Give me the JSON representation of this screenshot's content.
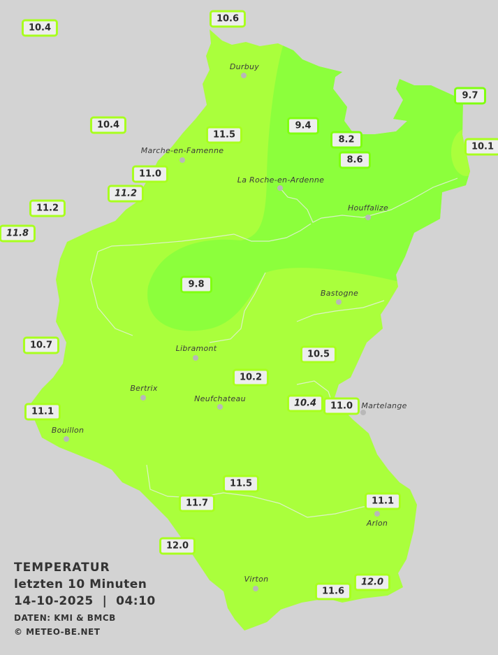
{
  "legend": {
    "title": "TEMPERATUR",
    "period": "letzten 10 Minuten",
    "datetime": "14-10-2025  |  04:10",
    "source": "DATEN: KMI & BMCB",
    "copyright": "© METEO-BE.NET"
  },
  "colors": {
    "background": "#d3d3d3",
    "zone_10_to_12": "#aaff3c",
    "zone_8_to_10": "#8cff3c",
    "badge_border_warm": "#a8ff1e",
    "badge_border_cool": "#80ff10"
  },
  "cities": [
    {
      "name": "Durbuy"
    },
    {
      "name": "Marche-en-Famenne"
    },
    {
      "name": "La Roche-en-Ardenne"
    },
    {
      "name": "Houffalize"
    },
    {
      "name": "Bastogne"
    },
    {
      "name": "Libramont"
    },
    {
      "name": "Bertrix"
    },
    {
      "name": "Neufchateau"
    },
    {
      "name": "Martelange"
    },
    {
      "name": "Bouillon"
    },
    {
      "name": "Arlon"
    },
    {
      "name": "Virton"
    }
  ],
  "stations": [
    {
      "value": "10.4",
      "italic": false
    },
    {
      "value": "10.6",
      "italic": false
    },
    {
      "value": "10.4",
      "italic": false
    },
    {
      "value": "11.5",
      "italic": false
    },
    {
      "value": "9.4",
      "italic": false
    },
    {
      "value": "8.2",
      "italic": false
    },
    {
      "value": "8.6",
      "italic": false
    },
    {
      "value": "9.7",
      "italic": false
    },
    {
      "value": "10.1",
      "italic": false
    },
    {
      "value": "11.0",
      "italic": false
    },
    {
      "value": "11.2",
      "italic": true
    },
    {
      "value": "11.2",
      "italic": false
    },
    {
      "value": "11.8",
      "italic": true
    },
    {
      "value": "9.8",
      "italic": false
    },
    {
      "value": "10.7",
      "italic": false
    },
    {
      "value": "10.5",
      "italic": false
    },
    {
      "value": "10.2",
      "italic": false
    },
    {
      "value": "10.4",
      "italic": true
    },
    {
      "value": "11.0",
      "italic": false
    },
    {
      "value": "11.1",
      "italic": false
    },
    {
      "value": "11.5",
      "italic": false
    },
    {
      "value": "11.7",
      "italic": false
    },
    {
      "value": "11.1",
      "italic": false
    },
    {
      "value": "12.0",
      "italic": false
    },
    {
      "value": "12.0",
      "italic": true
    },
    {
      "value": "11.6",
      "italic": false
    }
  ]
}
